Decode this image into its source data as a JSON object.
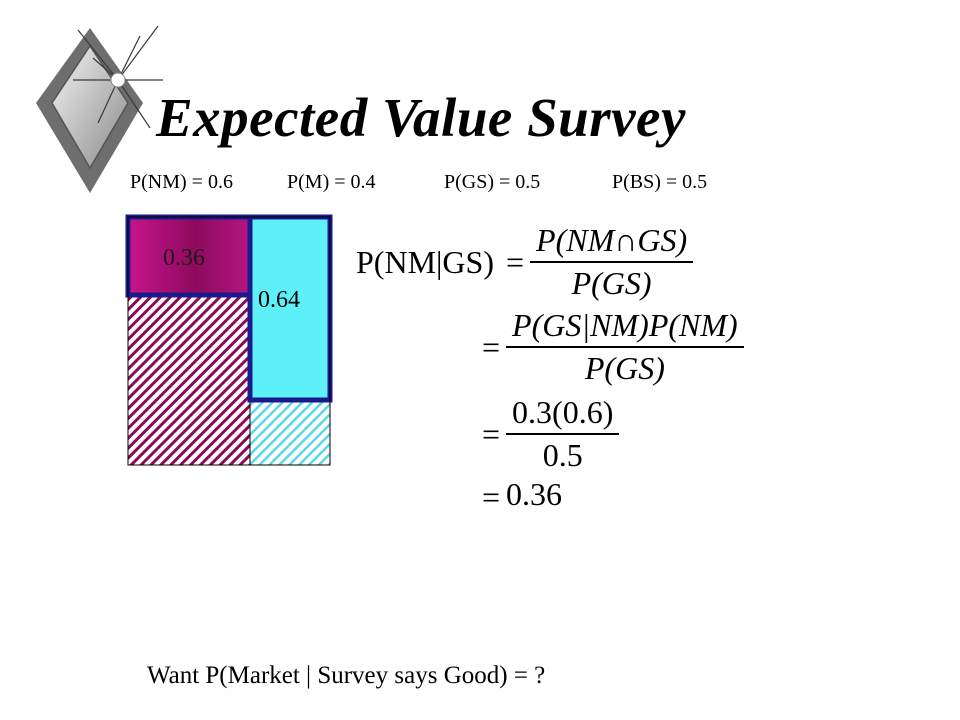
{
  "slide": {
    "title": "Expected Value Survey",
    "probabilities": {
      "p_nm": "P(NM) = 0.6",
      "p_m": "P(M) = 0.4",
      "p_gs": "P(GS) = 0.5",
      "p_bs": "P(BS) = 0.5"
    },
    "diagram": {
      "box_nm_gs_label": "0.36",
      "box_m_gs_label": "0.64",
      "colors": {
        "no_market": "#8a0a5a",
        "market": "#5ae8f0",
        "outline": "#1a1a8c"
      }
    },
    "equations": {
      "eq1_lhs": "P(NM|GS)",
      "eq1_num": "P(NM∩GS)",
      "eq1_den": "P(GS)",
      "eq2_num": "P(GS|NM)P(NM)",
      "eq2_den": "P(GS)",
      "eq3_num": "0.3(0.6)",
      "eq3_den": "0.5",
      "eq4_result": "0.36",
      "equals": "="
    },
    "question": "Want P(Market | Survey says  Good) = ?"
  },
  "icons": {
    "logo": "diamond-star-bullet-icon"
  }
}
